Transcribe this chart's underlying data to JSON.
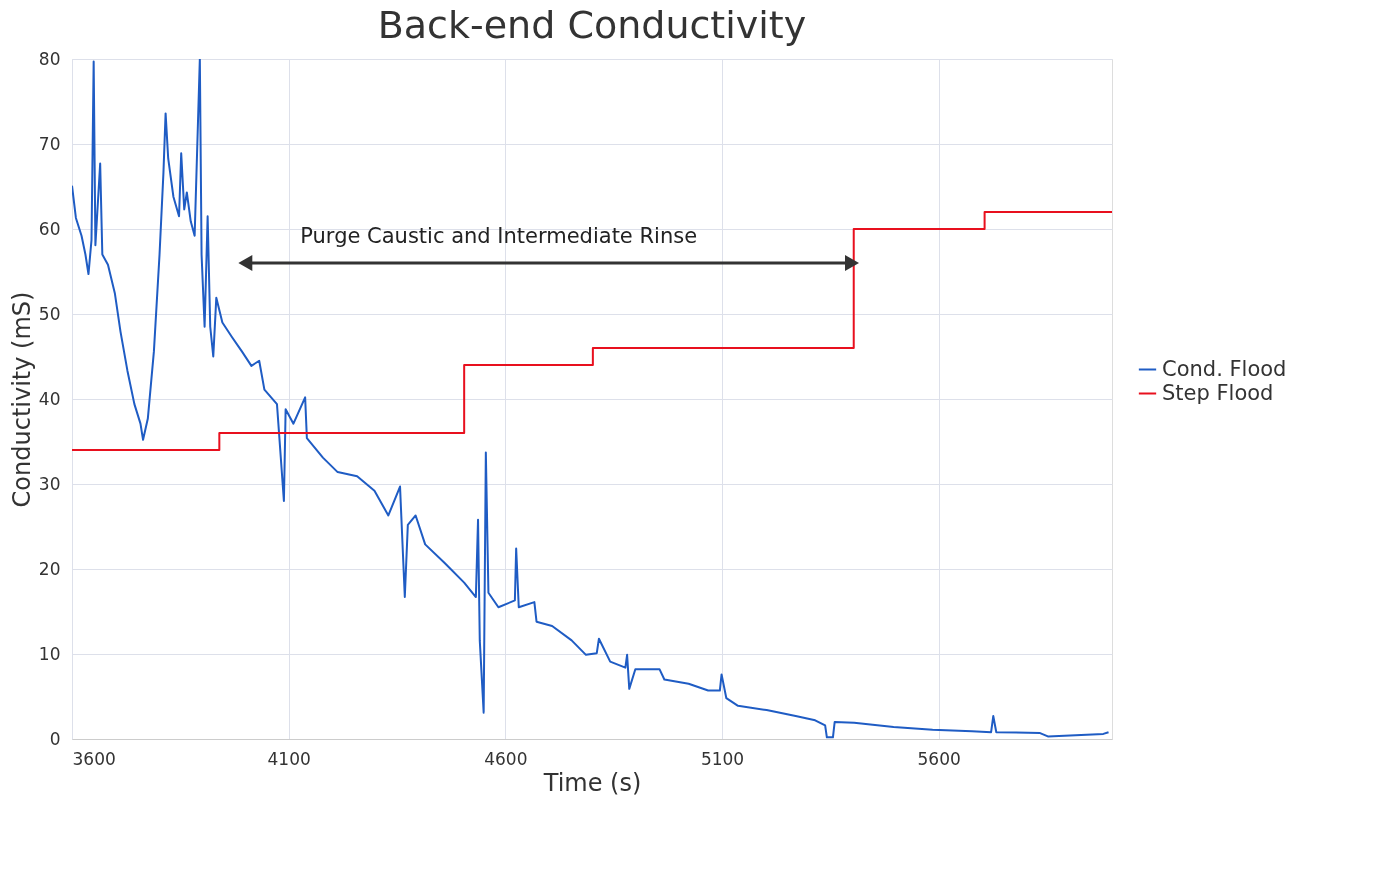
{
  "chart_data": {
    "type": "line",
    "title": "Back-end Conductivity",
    "xlabel": "Time (s)",
    "ylabel": "Conductivity (mS)",
    "xlim": [
      3600,
      6000
    ],
    "xticks": [
      3600,
      4100,
      4600,
      5100,
      5600
    ],
    "ylim": [
      0,
      80
    ],
    "yticks": [
      0,
      10,
      20,
      30,
      40,
      50,
      60,
      70,
      80
    ],
    "grid": true,
    "legend": "right",
    "line_style": "solid",
    "annotations": [
      "Purge Caustic and Intermediate Rinse"
    ],
    "series": [
      {
        "name": "Cond. Flood",
        "color": "#1f5cc4",
        "x": [
          3600,
          3609,
          3622,
          3631,
          3638,
          3645,
          3650,
          3654,
          3665,
          3670,
          3683,
          3699,
          3712,
          3728,
          3744,
          3758,
          3764,
          3775,
          3789,
          3802,
          3811,
          3816,
          3822,
          3834,
          3847,
          3852,
          3859,
          3865,
          3874,
          3883,
          3895,
          3899,
          3906,
          3913,
          3919,
          3926,
          3933,
          3947,
          3969,
          3992,
          4014,
          4032,
          4044,
          4073,
          4089,
          4093,
          4111,
          4138,
          4142,
          4179,
          4213,
          4258,
          4298,
          4330,
          4357,
          4368,
          4375,
          4393,
          4415,
          4460,
          4505,
          4532,
          4537,
          4541,
          4550,
          4555,
          4561,
          4584,
          4622,
          4625,
          4631,
          4667,
          4672,
          4708,
          4753,
          4786,
          4811,
          4816,
          4842,
          4877,
          4881,
          4886,
          4900,
          4956,
          4967,
          5023,
          5068,
          5095,
          5099,
          5110,
          5137,
          5203,
          5270,
          5315,
          5338,
          5342,
          5356,
          5360,
          5405,
          5496,
          5586,
          5677,
          5721,
          5726,
          5733,
          5834,
          5852,
          5980,
          5992
        ],
        "values": [
          65.1,
          61.3,
          59.2,
          57.0,
          54.7,
          58.7,
          79.7,
          58.1,
          67.7,
          57.0,
          55.8,
          52.4,
          47.9,
          43.3,
          39.4,
          37.1,
          35.2,
          37.7,
          45.6,
          57.0,
          66.6,
          73.6,
          68.3,
          63.8,
          61.5,
          68.9,
          62.3,
          64.3,
          60.9,
          59.2,
          80.0,
          57.0,
          48.5,
          61.5,
          48.5,
          45.0,
          51.9,
          49.0,
          47.3,
          45.6,
          43.9,
          44.5,
          41.1,
          39.4,
          28.0,
          38.8,
          37.1,
          40.2,
          35.4,
          33.1,
          31.4,
          30.9,
          29.2,
          26.3,
          29.7,
          16.7,
          25.2,
          26.3,
          22.9,
          20.7,
          18.4,
          16.7,
          25.8,
          11.6,
          3.1,
          33.7,
          17.2,
          15.5,
          16.3,
          22.4,
          15.5,
          16.1,
          13.8,
          13.3,
          11.6,
          9.9,
          10.1,
          11.8,
          9.1,
          8.4,
          9.9,
          5.9,
          8.2,
          8.2,
          7.0,
          6.5,
          5.7,
          5.7,
          7.6,
          4.8,
          3.9,
          3.4,
          2.7,
          2.2,
          1.6,
          0.2,
          0.2,
          2.0,
          1.9,
          1.4,
          1.1,
          0.9,
          0.8,
          2.7,
          0.8,
          0.7,
          0.3,
          0.6,
          0.8
        ]
      },
      {
        "name": "Step Flood",
        "type": "step",
        "color": "#e8101e",
        "x": [
          3600,
          3940,
          4505,
          4802,
          5404,
          5706,
          6000
        ],
        "values": [
          34,
          36,
          44,
          46,
          60,
          62,
          62
        ]
      },
      {
        "type": "line",
        "color": "#333333",
        "marker": "triangle",
        "x": [
          4000,
          5400
        ],
        "values": [
          56,
          56
        ]
      }
    ]
  }
}
